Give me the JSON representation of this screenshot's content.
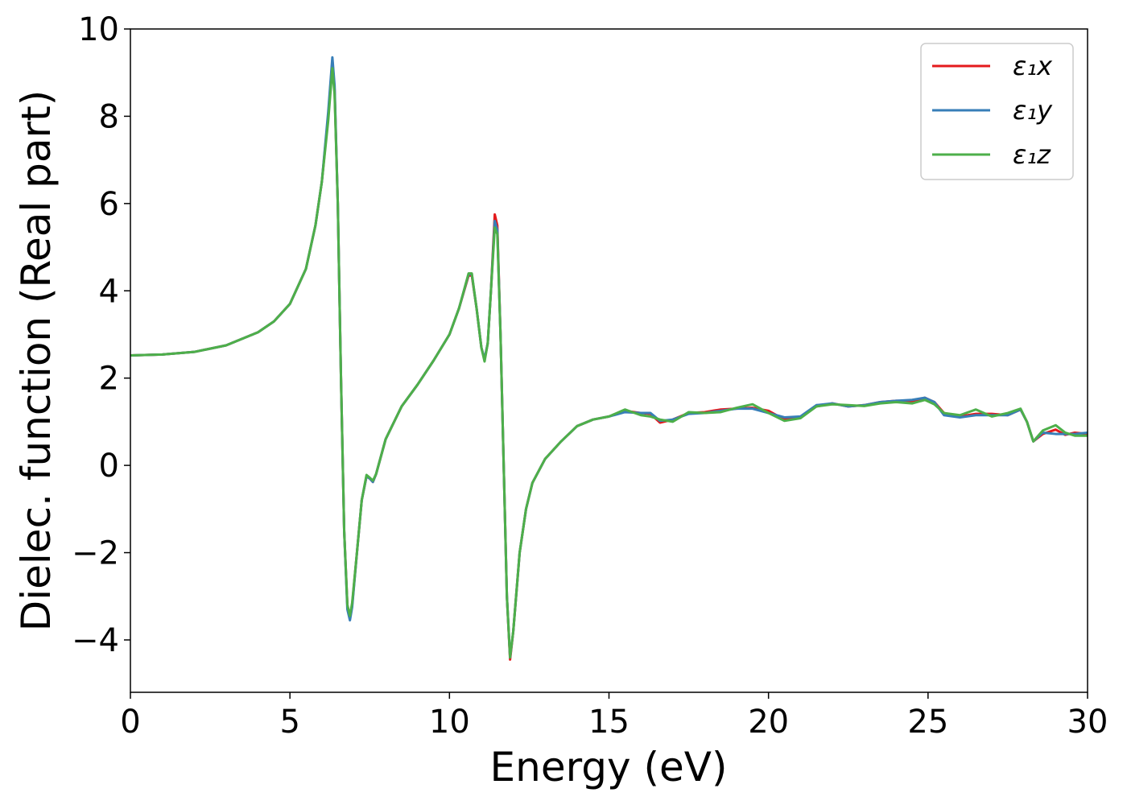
{
  "chart_data": {
    "type": "line",
    "title": "",
    "xlabel": "Energy (eV)",
    "ylabel": "Dielec. function (Real part)",
    "xlim": [
      0,
      30
    ],
    "ylim": [
      -5.2,
      10.0
    ],
    "xticks": [
      0,
      5,
      10,
      15,
      20,
      25,
      30
    ],
    "xtick_labels": [
      "0",
      "5",
      "10",
      "15",
      "20",
      "25",
      "30"
    ],
    "yticks": [
      -4,
      -2,
      0,
      2,
      4,
      6,
      8,
      10
    ],
    "ytick_labels": [
      "−4",
      "−2",
      "0",
      "2",
      "4",
      "6",
      "8",
      "10"
    ],
    "grid": false,
    "legend_position": "top-right",
    "series": [
      {
        "name": "ε₁x",
        "color": "#e41a1c",
        "points": [
          [
            0,
            2.52
          ],
          [
            1,
            2.54
          ],
          [
            2,
            2.6
          ],
          [
            3,
            2.75
          ],
          [
            4,
            3.05
          ],
          [
            4.5,
            3.3
          ],
          [
            5,
            3.7
          ],
          [
            5.5,
            4.5
          ],
          [
            5.8,
            5.5
          ],
          [
            6.0,
            6.5
          ],
          [
            6.2,
            8.0
          ],
          [
            6.33,
            9.28
          ],
          [
            6.4,
            8.6
          ],
          [
            6.5,
            6.0
          ],
          [
            6.6,
            2.0
          ],
          [
            6.7,
            -1.5
          ],
          [
            6.8,
            -3.2
          ],
          [
            6.88,
            -3.5
          ],
          [
            6.95,
            -3.2
          ],
          [
            7.1,
            -2.0
          ],
          [
            7.25,
            -0.8
          ],
          [
            7.4,
            -0.25
          ],
          [
            7.5,
            -0.3
          ],
          [
            7.6,
            -0.38
          ],
          [
            7.7,
            -0.2
          ],
          [
            8.0,
            0.6
          ],
          [
            8.5,
            1.35
          ],
          [
            9.0,
            1.85
          ],
          [
            9.5,
            2.4
          ],
          [
            10.0,
            3.0
          ],
          [
            10.3,
            3.6
          ],
          [
            10.6,
            4.35
          ],
          [
            10.7,
            4.35
          ],
          [
            10.85,
            3.6
          ],
          [
            11.0,
            2.7
          ],
          [
            11.1,
            2.42
          ],
          [
            11.2,
            2.8
          ],
          [
            11.3,
            4.0
          ],
          [
            11.42,
            5.75
          ],
          [
            11.5,
            5.5
          ],
          [
            11.6,
            3.0
          ],
          [
            11.7,
            0.0
          ],
          [
            11.8,
            -3.0
          ],
          [
            11.9,
            -4.45
          ],
          [
            12.0,
            -3.8
          ],
          [
            12.2,
            -2.0
          ],
          [
            12.4,
            -1.0
          ],
          [
            12.6,
            -0.4
          ],
          [
            13.0,
            0.15
          ],
          [
            13.5,
            0.55
          ],
          [
            14.0,
            0.9
          ],
          [
            14.5,
            1.05
          ],
          [
            15.0,
            1.12
          ],
          [
            15.5,
            1.25
          ],
          [
            16.0,
            1.2
          ],
          [
            16.3,
            1.18
          ],
          [
            16.6,
            0.98
          ],
          [
            17.0,
            1.05
          ],
          [
            17.5,
            1.2
          ],
          [
            18.0,
            1.22
          ],
          [
            18.5,
            1.28
          ],
          [
            19.0,
            1.3
          ],
          [
            19.5,
            1.32
          ],
          [
            20.0,
            1.25
          ],
          [
            20.5,
            1.05
          ],
          [
            21.0,
            1.1
          ],
          [
            21.5,
            1.35
          ],
          [
            22.0,
            1.42
          ],
          [
            22.5,
            1.35
          ],
          [
            23.0,
            1.38
          ],
          [
            23.5,
            1.45
          ],
          [
            24.0,
            1.48
          ],
          [
            24.5,
            1.47
          ],
          [
            24.9,
            1.55
          ],
          [
            25.2,
            1.45
          ],
          [
            25.5,
            1.2
          ],
          [
            26.0,
            1.12
          ],
          [
            26.5,
            1.18
          ],
          [
            27.0,
            1.18
          ],
          [
            27.5,
            1.15
          ],
          [
            27.9,
            1.28
          ],
          [
            28.1,
            1.0
          ],
          [
            28.3,
            0.55
          ],
          [
            28.6,
            0.72
          ],
          [
            29.0,
            0.82
          ],
          [
            29.3,
            0.7
          ],
          [
            29.6,
            0.75
          ],
          [
            30.0,
            0.72
          ]
        ]
      },
      {
        "name": "ε₁y",
        "color": "#377eb8",
        "points": [
          [
            0,
            2.52
          ],
          [
            1,
            2.54
          ],
          [
            2,
            2.6
          ],
          [
            3,
            2.75
          ],
          [
            4,
            3.05
          ],
          [
            4.5,
            3.3
          ],
          [
            5,
            3.7
          ],
          [
            5.5,
            4.5
          ],
          [
            5.8,
            5.5
          ],
          [
            6.0,
            6.5
          ],
          [
            6.2,
            8.1
          ],
          [
            6.33,
            9.35
          ],
          [
            6.4,
            8.7
          ],
          [
            6.5,
            6.0
          ],
          [
            6.6,
            2.0
          ],
          [
            6.7,
            -1.5
          ],
          [
            6.8,
            -3.3
          ],
          [
            6.88,
            -3.55
          ],
          [
            6.95,
            -3.25
          ],
          [
            7.1,
            -2.0
          ],
          [
            7.25,
            -0.8
          ],
          [
            7.4,
            -0.25
          ],
          [
            7.5,
            -0.3
          ],
          [
            7.6,
            -0.38
          ],
          [
            7.7,
            -0.2
          ],
          [
            8.0,
            0.6
          ],
          [
            8.5,
            1.35
          ],
          [
            9.0,
            1.85
          ],
          [
            9.5,
            2.4
          ],
          [
            10.0,
            3.0
          ],
          [
            10.3,
            3.6
          ],
          [
            10.6,
            4.38
          ],
          [
            10.7,
            4.38
          ],
          [
            10.85,
            3.6
          ],
          [
            11.0,
            2.7
          ],
          [
            11.1,
            2.44
          ],
          [
            11.2,
            2.8
          ],
          [
            11.3,
            4.0
          ],
          [
            11.42,
            5.6
          ],
          [
            11.5,
            5.4
          ],
          [
            11.6,
            3.0
          ],
          [
            11.7,
            0.0
          ],
          [
            11.8,
            -3.0
          ],
          [
            11.9,
            -4.4
          ],
          [
            12.0,
            -3.8
          ],
          [
            12.2,
            -2.0
          ],
          [
            12.4,
            -1.0
          ],
          [
            12.6,
            -0.4
          ],
          [
            13.0,
            0.15
          ],
          [
            13.5,
            0.55
          ],
          [
            14.0,
            0.9
          ],
          [
            14.5,
            1.05
          ],
          [
            15.0,
            1.12
          ],
          [
            15.5,
            1.22
          ],
          [
            16.0,
            1.2
          ],
          [
            16.3,
            1.2
          ],
          [
            16.6,
            1.02
          ],
          [
            17.0,
            1.05
          ],
          [
            17.5,
            1.18
          ],
          [
            18.0,
            1.2
          ],
          [
            18.5,
            1.25
          ],
          [
            19.0,
            1.3
          ],
          [
            19.5,
            1.3
          ],
          [
            20.0,
            1.2
          ],
          [
            20.5,
            1.1
          ],
          [
            21.0,
            1.12
          ],
          [
            21.5,
            1.38
          ],
          [
            22.0,
            1.42
          ],
          [
            22.5,
            1.35
          ],
          [
            23.0,
            1.38
          ],
          [
            23.5,
            1.45
          ],
          [
            24.0,
            1.48
          ],
          [
            24.5,
            1.5
          ],
          [
            24.9,
            1.55
          ],
          [
            25.2,
            1.45
          ],
          [
            25.5,
            1.15
          ],
          [
            26.0,
            1.1
          ],
          [
            26.5,
            1.15
          ],
          [
            27.0,
            1.15
          ],
          [
            27.5,
            1.15
          ],
          [
            27.9,
            1.28
          ],
          [
            28.1,
            1.0
          ],
          [
            28.3,
            0.55
          ],
          [
            28.6,
            0.75
          ],
          [
            29.0,
            0.72
          ],
          [
            29.3,
            0.72
          ],
          [
            29.6,
            0.72
          ],
          [
            30.0,
            0.75
          ]
        ]
      },
      {
        "name": "ε₁z",
        "color": "#4daf4a",
        "points": [
          [
            0,
            2.52
          ],
          [
            1,
            2.54
          ],
          [
            2,
            2.6
          ],
          [
            3,
            2.75
          ],
          [
            4,
            3.05
          ],
          [
            4.5,
            3.3
          ],
          [
            5,
            3.7
          ],
          [
            5.5,
            4.5
          ],
          [
            5.8,
            5.5
          ],
          [
            6.0,
            6.5
          ],
          [
            6.2,
            7.9
          ],
          [
            6.33,
            9.1
          ],
          [
            6.4,
            8.5
          ],
          [
            6.5,
            6.0
          ],
          [
            6.6,
            2.0
          ],
          [
            6.7,
            -1.5
          ],
          [
            6.8,
            -3.2
          ],
          [
            6.88,
            -3.45
          ],
          [
            6.95,
            -3.15
          ],
          [
            7.1,
            -2.0
          ],
          [
            7.25,
            -0.8
          ],
          [
            7.4,
            -0.22
          ],
          [
            7.5,
            -0.28
          ],
          [
            7.6,
            -0.35
          ],
          [
            7.7,
            -0.2
          ],
          [
            8.0,
            0.6
          ],
          [
            8.5,
            1.35
          ],
          [
            9.0,
            1.85
          ],
          [
            9.5,
            2.4
          ],
          [
            10.0,
            3.0
          ],
          [
            10.3,
            3.6
          ],
          [
            10.6,
            4.4
          ],
          [
            10.7,
            4.4
          ],
          [
            10.85,
            3.6
          ],
          [
            11.0,
            2.7
          ],
          [
            11.1,
            2.38
          ],
          [
            11.2,
            2.8
          ],
          [
            11.3,
            4.0
          ],
          [
            11.42,
            5.45
          ],
          [
            11.5,
            5.3
          ],
          [
            11.6,
            3.0
          ],
          [
            11.7,
            0.0
          ],
          [
            11.8,
            -3.0
          ],
          [
            11.9,
            -4.4
          ],
          [
            12.0,
            -3.8
          ],
          [
            12.2,
            -2.0
          ],
          [
            12.4,
            -1.0
          ],
          [
            12.6,
            -0.4
          ],
          [
            13.0,
            0.15
          ],
          [
            13.5,
            0.55
          ],
          [
            14.0,
            0.9
          ],
          [
            14.5,
            1.05
          ],
          [
            15.0,
            1.12
          ],
          [
            15.5,
            1.28
          ],
          [
            16.0,
            1.15
          ],
          [
            16.3,
            1.12
          ],
          [
            16.6,
            1.05
          ],
          [
            17.0,
            1.0
          ],
          [
            17.5,
            1.22
          ],
          [
            18.0,
            1.2
          ],
          [
            18.5,
            1.22
          ],
          [
            19.0,
            1.32
          ],
          [
            19.5,
            1.4
          ],
          [
            20.0,
            1.2
          ],
          [
            20.5,
            1.02
          ],
          [
            21.0,
            1.08
          ],
          [
            21.5,
            1.35
          ],
          [
            22.0,
            1.4
          ],
          [
            22.5,
            1.38
          ],
          [
            23.0,
            1.36
          ],
          [
            23.5,
            1.42
          ],
          [
            24.0,
            1.45
          ],
          [
            24.5,
            1.42
          ],
          [
            24.9,
            1.5
          ],
          [
            25.2,
            1.4
          ],
          [
            25.5,
            1.2
          ],
          [
            26.0,
            1.15
          ],
          [
            26.5,
            1.28
          ],
          [
            27.0,
            1.12
          ],
          [
            27.5,
            1.2
          ],
          [
            27.9,
            1.3
          ],
          [
            28.1,
            1.0
          ],
          [
            28.3,
            0.55
          ],
          [
            28.6,
            0.8
          ],
          [
            29.0,
            0.92
          ],
          [
            29.3,
            0.75
          ],
          [
            29.6,
            0.68
          ],
          [
            30.0,
            0.68
          ]
        ]
      }
    ]
  }
}
